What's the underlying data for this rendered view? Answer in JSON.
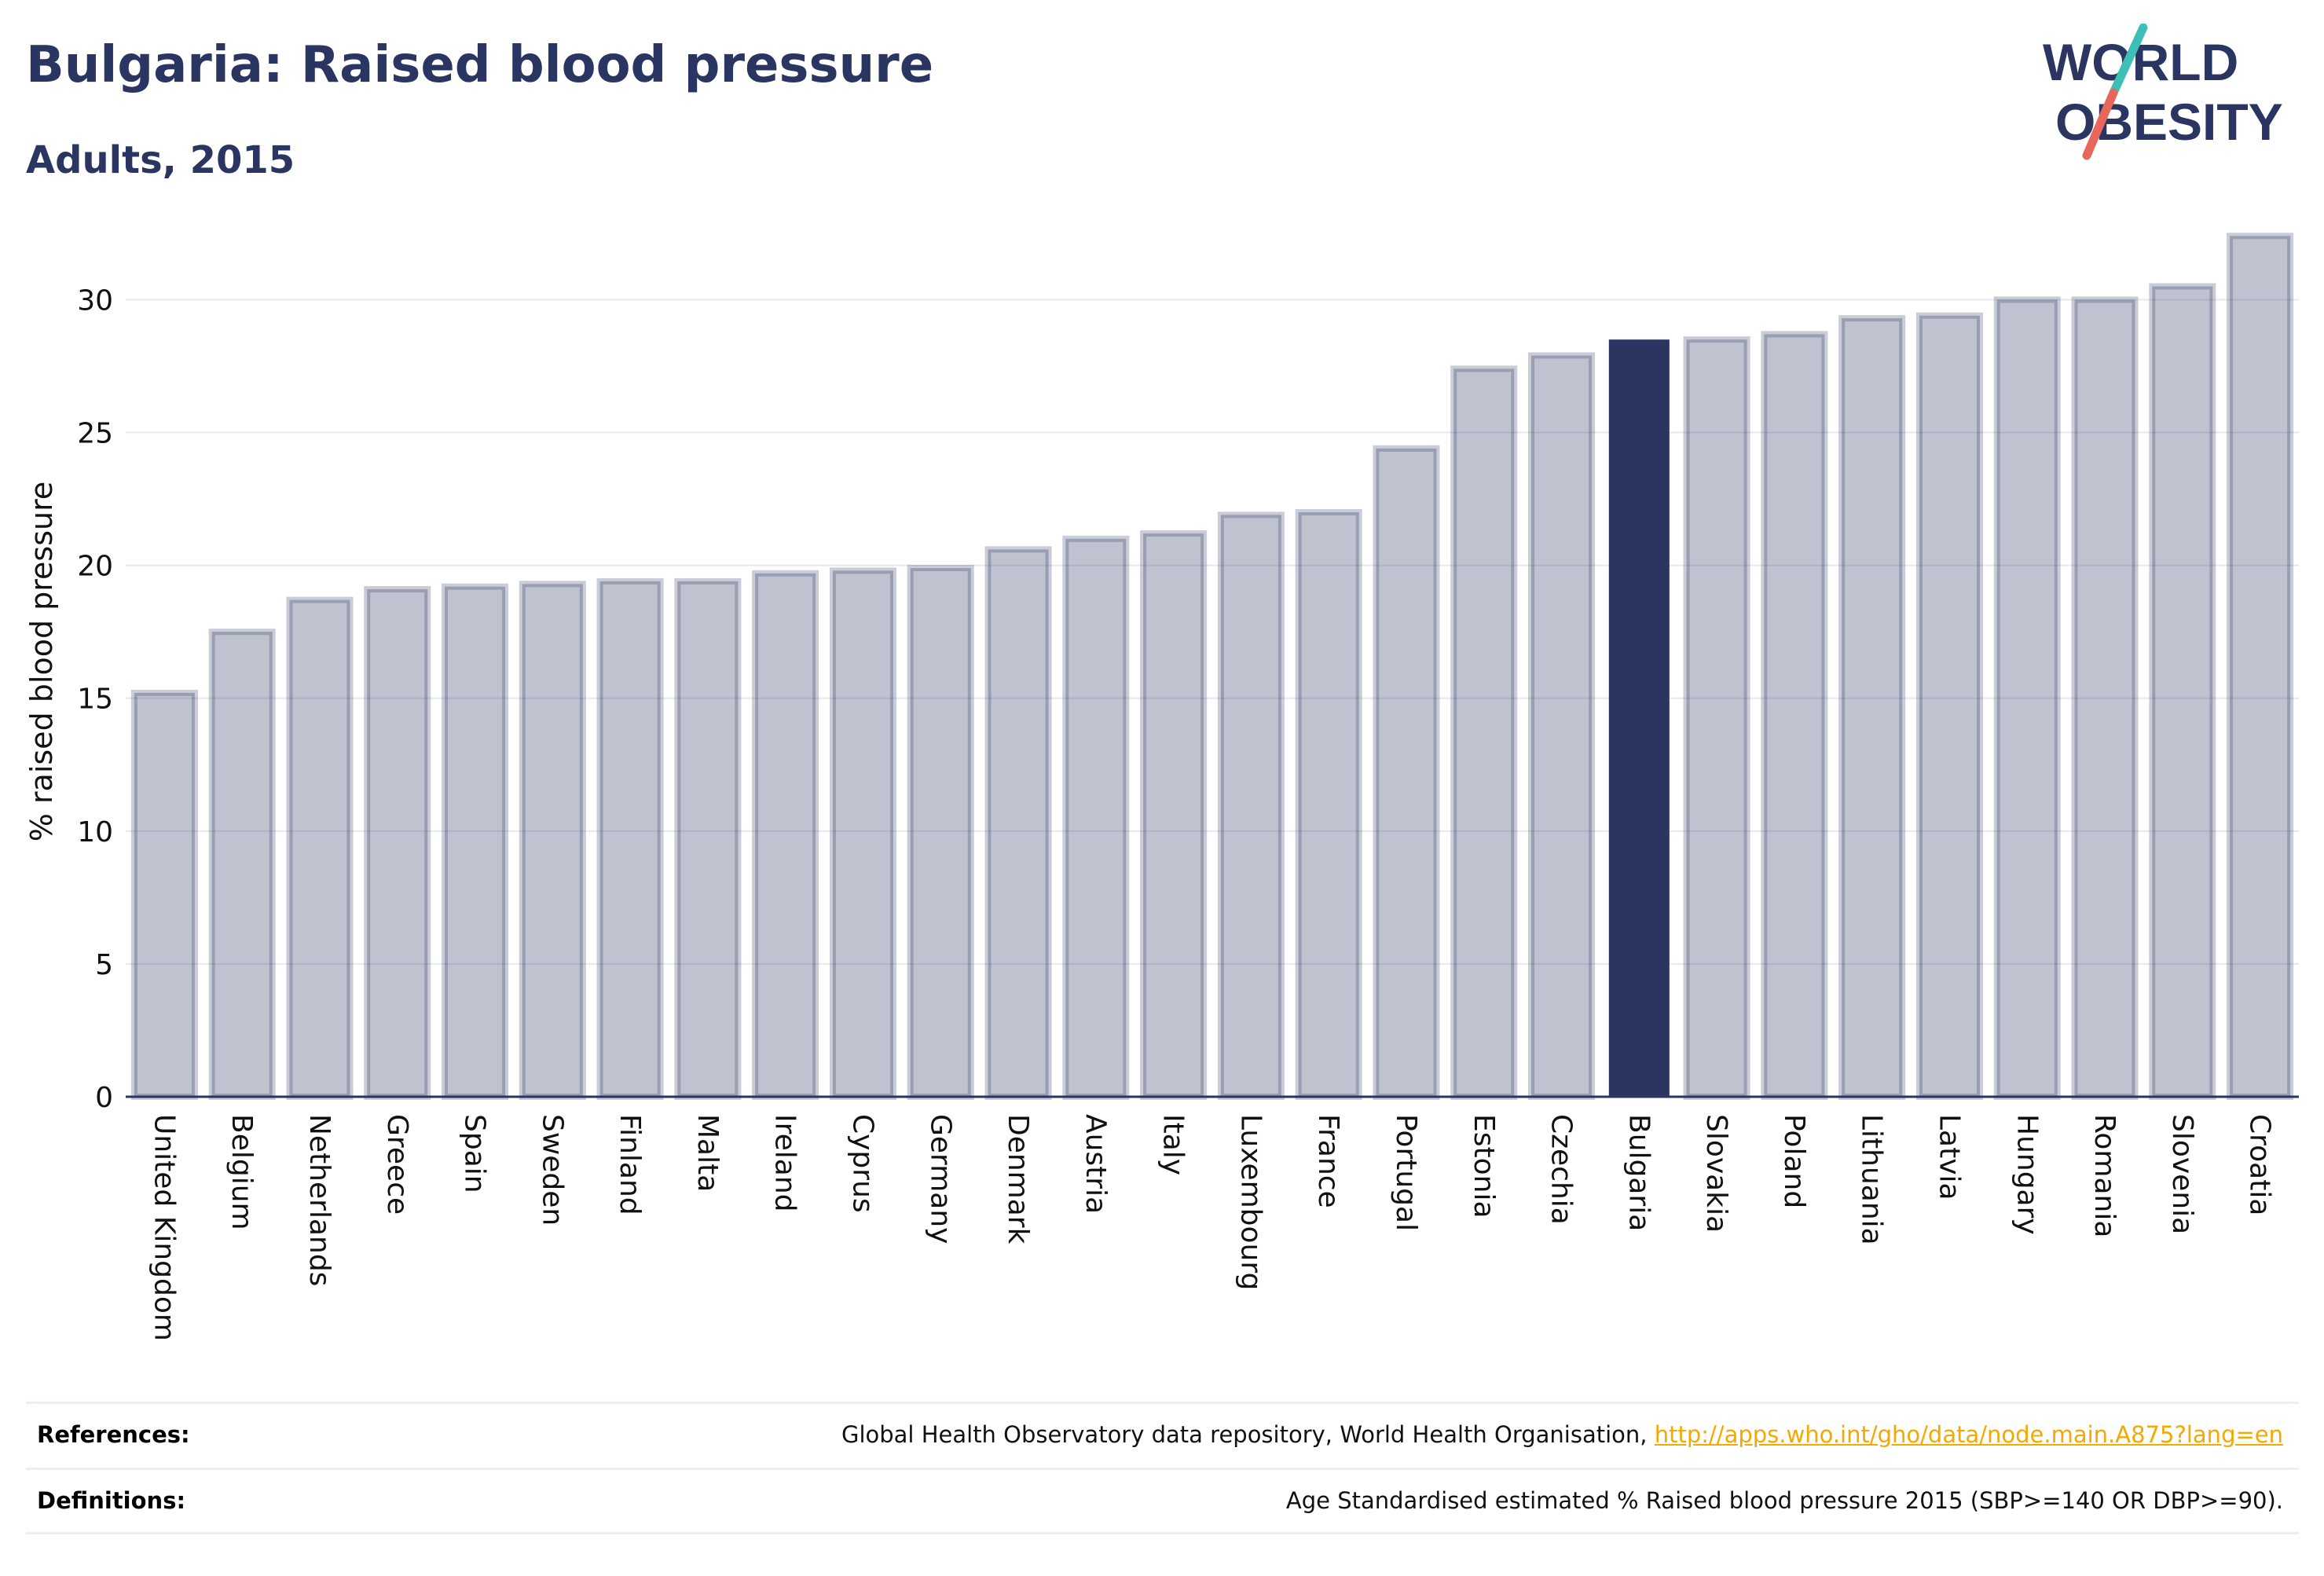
{
  "header": {
    "title": "Bulgaria: Raised blood pressure",
    "subtitle": "Adults, 2015"
  },
  "logo": {
    "line1": "WORLD",
    "line2": "OBESITY",
    "colors": {
      "text": "#2a3561",
      "slash_top": "#3dbfb8",
      "slash_bottom": "#e8665a"
    }
  },
  "chart_data": {
    "type": "bar",
    "ylabel": "% raised blood pressure",
    "xlabel": "",
    "ylim": [
      0,
      33
    ],
    "yticks": [
      0,
      5,
      10,
      15,
      20,
      25,
      30
    ],
    "grid": true,
    "highlight": "Bulgaria",
    "colors": {
      "bar": "#2a3561",
      "bar_opacity": 0.3,
      "highlight": "#2a3561",
      "grid": "#e6e8f0",
      "axis": "#2a3561"
    },
    "categories": [
      "United Kingdom",
      "Belgium",
      "Netherlands",
      "Greece",
      "Spain",
      "Sweden",
      "Finland",
      "Malta",
      "Ireland",
      "Cyprus",
      "Germany",
      "Denmark",
      "Austria",
      "Italy",
      "Luxembourg",
      "France",
      "Portugal",
      "Estonia",
      "Czechia",
      "Bulgaria",
      "Slovakia",
      "Poland",
      "Lithuania",
      "Latvia",
      "Hungary",
      "Romania",
      "Slovenia",
      "Croatia"
    ],
    "values": [
      15.2,
      17.5,
      18.7,
      19.1,
      19.2,
      19.3,
      19.4,
      19.4,
      19.7,
      19.8,
      19.9,
      20.6,
      21.0,
      21.2,
      21.9,
      22.0,
      24.4,
      27.4,
      27.9,
      28.5,
      28.5,
      28.7,
      29.3,
      29.4,
      30.0,
      30.0,
      30.5,
      32.4
    ]
  },
  "footer": {
    "references_label": "References:",
    "references_text": "Global Health Observatory data repository, World Health Organisation, ",
    "references_link": "http://apps.who.int/gho/data/node.main.A875?lang=en",
    "definitions_label": "Definitions:",
    "definitions_text": "Age Standardised estimated % Raised blood pressure 2015 (SBP>=140 OR DBP>=90)."
  }
}
